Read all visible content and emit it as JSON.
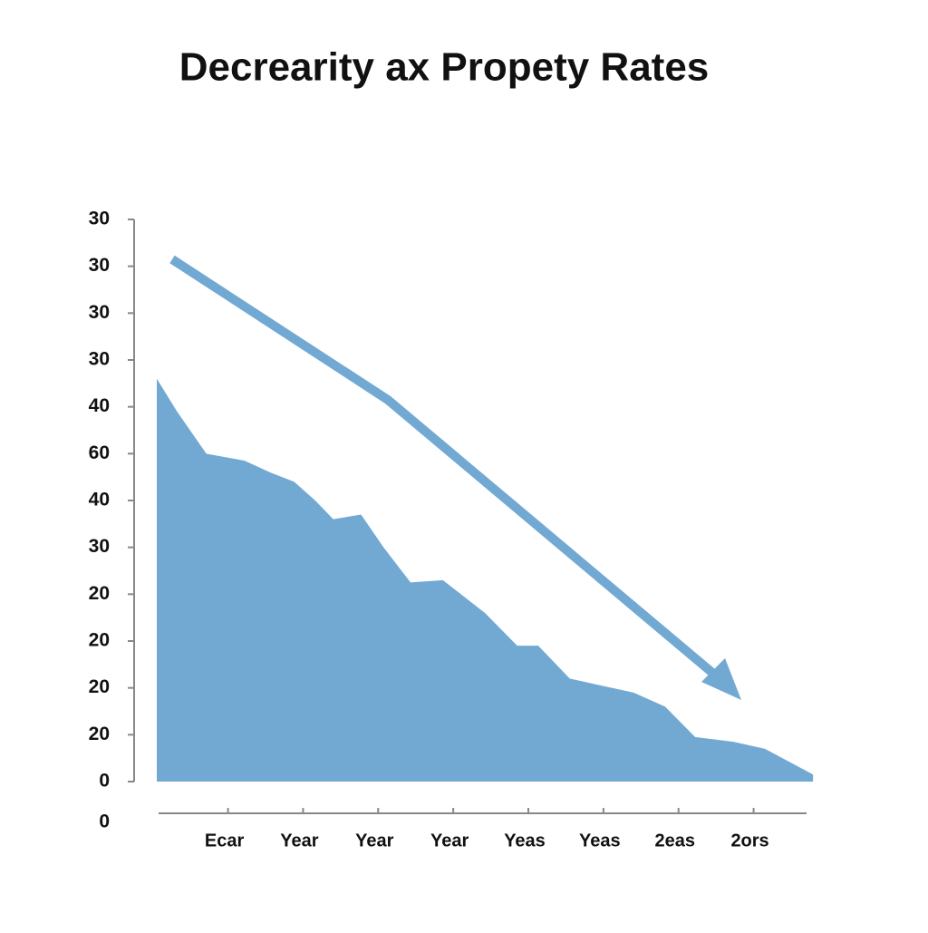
{
  "chart_data": {
    "type": "area",
    "title": "Decrearity ax Propety Rates",
    "color": "#72a9d3",
    "x": [
      -0.9,
      -0.63,
      -0.24,
      0.27,
      0.61,
      0.93,
      1.21,
      1.45,
      1.82,
      2.12,
      2.48,
      2.91,
      3.47,
      3.9,
      4.18,
      4.6,
      5.02,
      5.45,
      5.87,
      6.27,
      6.78,
      7.2,
      7.84
    ],
    "values": [
      8.6,
      7.9,
      7.0,
      6.85,
      6.6,
      6.4,
      6.0,
      5.6,
      5.7,
      5.0,
      4.25,
      4.3,
      3.6,
      2.9,
      2.9,
      2.2,
      2.05,
      1.9,
      1.6,
      0.95,
      0.85,
      0.7,
      0.15
    ],
    "xlim": [
      -0.9,
      7.85
    ],
    "xticks": [
      {
        "value": 0,
        "label": "Ecar"
      },
      {
        "value": 1,
        "label": "Year"
      },
      {
        "value": 2,
        "label": "Year"
      },
      {
        "value": 3,
        "label": "Year"
      },
      {
        "value": 4,
        "label": "Yeas"
      },
      {
        "value": 5,
        "label": "Yeas"
      },
      {
        "value": 6,
        "label": "2eas"
      },
      {
        "value": 7,
        "label": "2ors"
      }
    ],
    "ylim": [
      -0.9,
      12
    ],
    "yticks": [
      {
        "value": 12,
        "label": "30"
      },
      {
        "value": 11,
        "label": "30"
      },
      {
        "value": 10,
        "label": "30"
      },
      {
        "value": 9,
        "label": "30"
      },
      {
        "value": 8,
        "label": "40"
      },
      {
        "value": 7,
        "label": "60"
      },
      {
        "value": 6,
        "label": "40"
      },
      {
        "value": 5,
        "label": "30"
      },
      {
        "value": 4,
        "label": "20"
      },
      {
        "value": 3,
        "label": "20"
      },
      {
        "value": 2,
        "label": "20"
      },
      {
        "value": 1,
        "label": "20"
      },
      0,
      {
        "value": -0.87,
        "label": "0"
      }
    ]
  }
}
